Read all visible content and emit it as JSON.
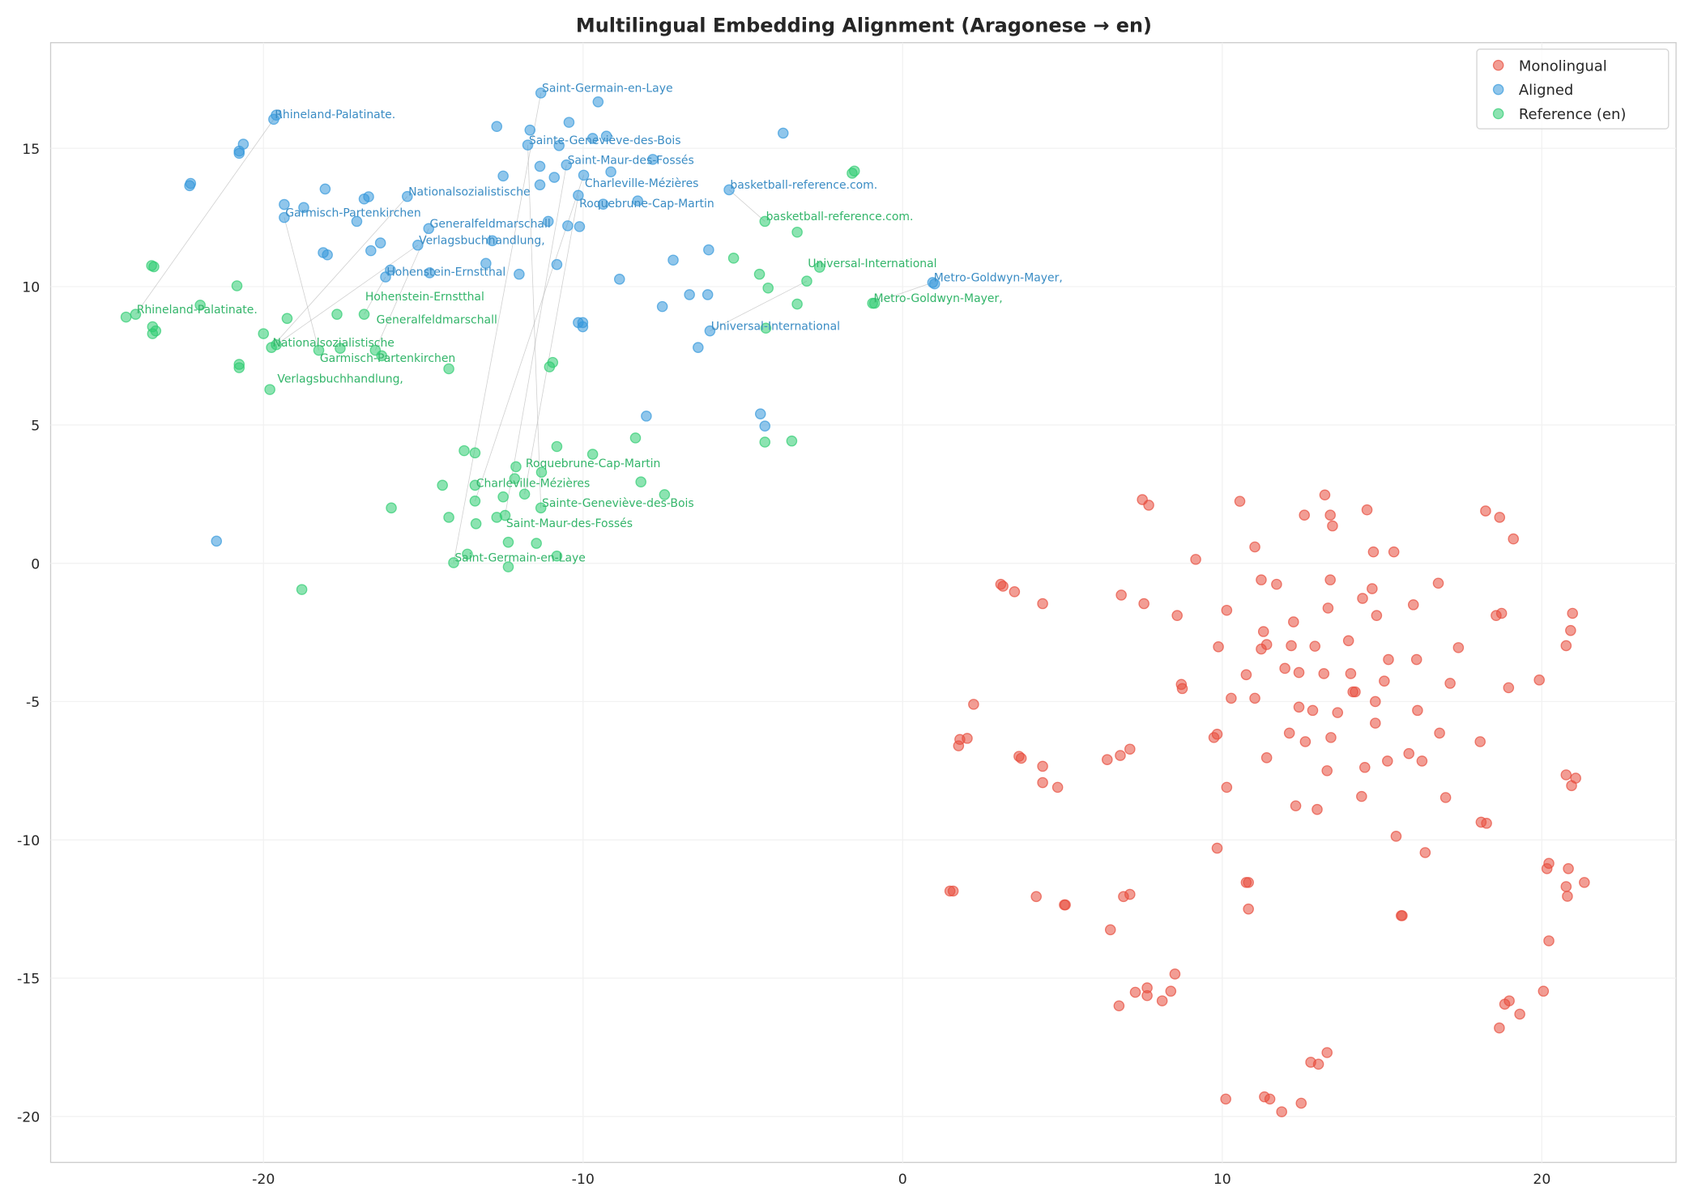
{
  "chart_data": {
    "type": "scatter",
    "title": "Multilingual Embedding Alignment (Aragonese → en)",
    "xlabel": "",
    "ylabel": "",
    "xlim": [
      -26.66,
      24.2
    ],
    "ylim": [
      -21.66,
      18.82
    ],
    "xticks": [
      -20,
      -10,
      0,
      10,
      20
    ],
    "xtick_labels": [
      "-20",
      "-10",
      "0",
      "10",
      "20"
    ],
    "yticks": [
      15,
      10,
      5,
      0,
      -5,
      -10,
      -15,
      -20
    ],
    "ytick_labels": [
      "15",
      "10",
      "5",
      "0",
      "-5",
      "-10",
      "-15",
      "-20"
    ],
    "grid": true,
    "legend_position": "top-right",
    "colors": {
      "Monolingual": "#e74c3c",
      "Aligned": "#3498db",
      "Reference (en)": "#2ecc71",
      "aligned_label": "#3a8cc4",
      "reference_label": "#33b56a"
    },
    "series": [
      {
        "name": "Monolingual",
        "points": [
          [
            13.21,
            2.47
          ],
          [
            7.5,
            2.3
          ],
          [
            7.7,
            2.1
          ],
          [
            10.55,
            2.24
          ],
          [
            14.53,
            1.93
          ],
          [
            12.57,
            1.74
          ],
          [
            13.38,
            1.74
          ],
          [
            13.45,
            1.35
          ],
          [
            18.24,
            1.89
          ],
          [
            18.68,
            1.66
          ],
          [
            19.11,
            0.88
          ],
          [
            15.37,
            0.41
          ],
          [
            14.73,
            0.41
          ],
          [
            9.17,
            0.14
          ],
          [
            11.02,
            0.59
          ],
          [
            3.07,
            -0.76
          ],
          [
            3.14,
            -0.83
          ],
          [
            3.5,
            -1.03
          ],
          [
            4.38,
            -1.46
          ],
          [
            6.84,
            -1.15
          ],
          [
            7.55,
            -1.46
          ],
          [
            11.22,
            -0.6
          ],
          [
            11.7,
            -0.76
          ],
          [
            13.38,
            -0.6
          ],
          [
            14.69,
            -0.92
          ],
          [
            14.39,
            -1.27
          ],
          [
            13.31,
            -1.62
          ],
          [
            15.98,
            -1.5
          ],
          [
            16.76,
            -0.72
          ],
          [
            10.14,
            -1.7
          ],
          [
            8.59,
            -1.89
          ],
          [
            14.83,
            -1.89
          ],
          [
            18.57,
            -1.89
          ],
          [
            18.74,
            -1.81
          ],
          [
            20.96,
            -1.81
          ],
          [
            11.29,
            -2.47
          ],
          [
            12.23,
            -2.12
          ],
          [
            9.88,
            -3.02
          ],
          [
            11.22,
            -3.1
          ],
          [
            11.39,
            -2.94
          ],
          [
            12.16,
            -2.98
          ],
          [
            12.9,
            -3.0
          ],
          [
            13.95,
            -2.8
          ],
          [
            15.2,
            -3.48
          ],
          [
            16.08,
            -3.48
          ],
          [
            17.39,
            -3.05
          ],
          [
            20.9,
            -2.43
          ],
          [
            20.76,
            -2.98
          ],
          [
            10.75,
            -4.03
          ],
          [
            11.96,
            -3.8
          ],
          [
            12.4,
            -3.95
          ],
          [
            13.18,
            -3.99
          ],
          [
            14.02,
            -3.99
          ],
          [
            15.07,
            -4.26
          ],
          [
            17.13,
            -4.34
          ],
          [
            19.92,
            -4.22
          ],
          [
            18.96,
            -4.5
          ],
          [
            8.72,
            -4.38
          ],
          [
            8.75,
            -4.53
          ],
          [
            10.28,
            -4.88
          ],
          [
            11.02,
            -4.88
          ],
          [
            14.09,
            -4.65
          ],
          [
            14.16,
            -4.65
          ],
          [
            12.4,
            -5.2
          ],
          [
            12.83,
            -5.32
          ],
          [
            13.61,
            -5.4
          ],
          [
            14.79,
            -5.0
          ],
          [
            16.11,
            -5.32
          ],
          [
            14.79,
            -5.78
          ],
          [
            2.22,
            -5.1
          ],
          [
            12.6,
            -6.45
          ],
          [
            12.1,
            -6.14
          ],
          [
            13.4,
            -6.3
          ],
          [
            9.74,
            -6.3
          ],
          [
            9.84,
            -6.18
          ],
          [
            16.8,
            -6.14
          ],
          [
            18.07,
            -6.45
          ],
          [
            15.84,
            -6.88
          ],
          [
            16.25,
            -7.15
          ],
          [
            15.17,
            -7.15
          ],
          [
            11.39,
            -7.03
          ],
          [
            14.46,
            -7.38
          ],
          [
            13.28,
            -7.5
          ],
          [
            7.11,
            -6.72
          ],
          [
            6.81,
            -6.95
          ],
          [
            6.4,
            -7.1
          ],
          [
            1.79,
            -6.37
          ],
          [
            2.02,
            -6.33
          ],
          [
            1.75,
            -6.6
          ],
          [
            3.64,
            -6.98
          ],
          [
            3.71,
            -7.05
          ],
          [
            4.38,
            -7.34
          ],
          [
            4.38,
            -7.93
          ],
          [
            4.85,
            -8.1
          ],
          [
            10.14,
            -8.1
          ],
          [
            16.99,
            -8.47
          ],
          [
            14.36,
            -8.43
          ],
          [
            20.76,
            -7.65
          ],
          [
            21.06,
            -7.77
          ],
          [
            20.93,
            -8.04
          ],
          [
            12.3,
            -8.77
          ],
          [
            12.97,
            -8.9
          ],
          [
            18.1,
            -9.36
          ],
          [
            18.27,
            -9.4
          ],
          [
            15.44,
            -9.87
          ],
          [
            9.84,
            -10.3
          ],
          [
            16.35,
            -10.46
          ],
          [
            20.22,
            -10.85
          ],
          [
            20.16,
            -11.04
          ],
          [
            20.83,
            -11.04
          ],
          [
            21.33,
            -11.54
          ],
          [
            20.76,
            -11.69
          ],
          [
            20.8,
            -12.04
          ],
          [
            10.75,
            -11.54
          ],
          [
            10.82,
            -11.54
          ],
          [
            10.82,
            -12.5
          ],
          [
            1.48,
            -11.85
          ],
          [
            1.58,
            -11.85
          ],
          [
            4.18,
            -12.05
          ],
          [
            5.06,
            -12.35
          ],
          [
            5.09,
            -12.35
          ],
          [
            7.11,
            -11.97
          ],
          [
            6.91,
            -12.05
          ],
          [
            15.6,
            -12.74
          ],
          [
            15.63,
            -12.74
          ],
          [
            6.5,
            -13.25
          ],
          [
            20.22,
            -13.65
          ],
          [
            8.52,
            -14.85
          ],
          [
            8.39,
            -15.47
          ],
          [
            7.65,
            -15.35
          ],
          [
            7.28,
            -15.51
          ],
          [
            7.65,
            -15.63
          ],
          [
            8.12,
            -15.82
          ],
          [
            6.77,
            -16.0
          ],
          [
            20.05,
            -15.47
          ],
          [
            19.31,
            -16.3
          ],
          [
            18.84,
            -15.94
          ],
          [
            18.98,
            -15.82
          ],
          [
            18.67,
            -16.8
          ],
          [
            13.28,
            -17.69
          ],
          [
            12.77,
            -18.04
          ],
          [
            13.01,
            -18.11
          ],
          [
            10.11,
            -19.37
          ],
          [
            11.32,
            -19.29
          ],
          [
            11.49,
            -19.37
          ],
          [
            12.47,
            -19.52
          ],
          [
            11.86,
            -19.83
          ]
        ]
      },
      {
        "name": "Aligned",
        "points": [
          [
            -22.31,
            13.65
          ],
          [
            -22.28,
            13.73
          ],
          [
            -20.76,
            14.9
          ],
          [
            -20.63,
            15.15
          ],
          [
            -20.76,
            14.82
          ],
          [
            -19.6,
            16.2
          ],
          [
            -21.47,
            0.8
          ],
          [
            -19.35,
            12.97
          ],
          [
            -18.74,
            12.86
          ],
          [
            -18.07,
            13.53
          ],
          [
            -18.13,
            11.23
          ],
          [
            -18.0,
            11.15
          ],
          [
            -17.08,
            12.36
          ],
          [
            -16.85,
            13.17
          ],
          [
            -16.71,
            13.25
          ],
          [
            -16.64,
            11.3
          ],
          [
            -16.34,
            11.58
          ],
          [
            -16.03,
            10.6
          ],
          [
            -12.7,
            15.79
          ],
          [
            -12.5,
            14.0
          ],
          [
            -11.66,
            15.66
          ],
          [
            -11.35,
            14.35
          ],
          [
            -11.35,
            13.68
          ],
          [
            -10.9,
            13.95
          ],
          [
            -10.75,
            15.1
          ],
          [
            -10.44,
            15.94
          ],
          [
            -9.7,
            15.36
          ],
          [
            -9.53,
            16.68
          ],
          [
            -9.27,
            15.44
          ],
          [
            -9.13,
            14.15
          ],
          [
            -9.37,
            12.98
          ],
          [
            -10.11,
            12.17
          ],
          [
            -10.48,
            12.2
          ],
          [
            -11.09,
            12.36
          ],
          [
            -10.82,
            10.8
          ],
          [
            -12.0,
            10.45
          ],
          [
            -13.04,
            10.84
          ],
          [
            -12.84,
            11.66
          ],
          [
            -14.8,
            10.5
          ],
          [
            -8.86,
            10.27
          ],
          [
            -8.29,
            13.1
          ],
          [
            -7.82,
            14.6
          ],
          [
            -7.18,
            10.96
          ],
          [
            -6.67,
            9.71
          ],
          [
            -6.1,
            9.71
          ],
          [
            -6.07,
            11.33
          ],
          [
            -7.52,
            9.28
          ],
          [
            -10.15,
            8.7
          ],
          [
            -10.01,
            8.7
          ],
          [
            -10.01,
            8.55
          ],
          [
            -6.4,
            7.8
          ],
          [
            -8.02,
            5.32
          ],
          [
            -4.45,
            5.4
          ],
          [
            -4.31,
            4.96
          ],
          [
            -3.74,
            15.55
          ],
          [
            1.0,
            10.1
          ]
        ]
      },
      {
        "name": "Reference (en)",
        "points": [
          [
            -23.5,
            10.76
          ],
          [
            -23.43,
            10.72
          ],
          [
            -24.3,
            8.9
          ],
          [
            -23.47,
            8.55
          ],
          [
            -23.37,
            8.4
          ],
          [
            -23.47,
            8.3
          ],
          [
            -21.98,
            9.33
          ],
          [
            -20.83,
            10.03
          ],
          [
            -20.0,
            8.3
          ],
          [
            -19.26,
            8.85
          ],
          [
            -20.76,
            7.19
          ],
          [
            -20.76,
            7.07
          ],
          [
            -19.8,
            6.28
          ],
          [
            -18.8,
            -0.95
          ],
          [
            -17.7,
            9.0
          ],
          [
            -17.6,
            7.77
          ],
          [
            -16.3,
            7.5
          ],
          [
            -14.2,
            7.03
          ],
          [
            -10.95,
            7.26
          ],
          [
            -11.05,
            7.1
          ],
          [
            -16.0,
            2.0
          ],
          [
            -14.4,
            2.82
          ],
          [
            -14.2,
            1.66
          ],
          [
            -13.72,
            4.07
          ],
          [
            -13.38,
            3.99
          ],
          [
            -13.38,
            2.82
          ],
          [
            -13.35,
            1.43
          ],
          [
            -13.62,
            0.33
          ],
          [
            -12.7,
            1.66
          ],
          [
            -12.5,
            2.4
          ],
          [
            -12.34,
            0.76
          ],
          [
            -12.34,
            -0.13
          ],
          [
            -12.14,
            3.06
          ],
          [
            -12.1,
            3.49
          ],
          [
            -11.46,
            0.72
          ],
          [
            -11.3,
            3.29
          ],
          [
            -10.82,
            4.22
          ],
          [
            -10.82,
            0.26
          ],
          [
            -9.7,
            3.94
          ],
          [
            -8.36,
            4.53
          ],
          [
            -8.19,
            2.94
          ],
          [
            -7.45,
            2.48
          ],
          [
            -5.29,
            11.03
          ],
          [
            -4.48,
            10.45
          ],
          [
            -4.21,
            9.95
          ],
          [
            -4.28,
            8.5
          ],
          [
            -3.3,
            11.97
          ],
          [
            -3.3,
            9.37
          ],
          [
            -2.6,
            10.7
          ],
          [
            -4.31,
            4.38
          ],
          [
            -3.47,
            4.42
          ],
          [
            -1.58,
            14.1
          ],
          [
            -1.51,
            14.18
          ],
          [
            -0.88,
            9.4
          ]
        ]
      }
    ],
    "labeled_pairs": [
      {
        "label": "Rhineland-Palatinate.",
        "aligned": [
          -19.68,
          16.05
        ],
        "reference": [
          -24.0,
          9.0
        ]
      },
      {
        "label": "Saint-Germain-en-Laye",
        "aligned": [
          -11.32,
          17.0
        ],
        "reference": [
          -14.05,
          0.02
        ]
      },
      {
        "label": "Sainte-Geneviève-des-Bois",
        "aligned": [
          -11.73,
          15.12
        ],
        "reference": [
          -11.32,
          2.0
        ]
      },
      {
        "label": "Saint-Maur-des-Fossés",
        "aligned": [
          -10.52,
          14.4
        ],
        "reference": [
          -12.44,
          1.73
        ]
      },
      {
        "label": "Charleville-Mézières",
        "aligned": [
          -9.98,
          14.03
        ],
        "reference": [
          -13.38,
          2.25
        ]
      },
      {
        "label": "Nationalsozialistische",
        "aligned": [
          -15.5,
          13.26
        ],
        "reference": [
          -19.75,
          7.8
        ]
      },
      {
        "label": "Roquebrune-Cap-Martin",
        "aligned": [
          -10.15,
          13.3
        ],
        "reference": [
          -11.83,
          2.5
        ]
      },
      {
        "label": "basketball-reference.com.",
        "aligned": [
          -5.43,
          13.5
        ],
        "reference": [
          -4.31,
          12.36
        ]
      },
      {
        "label": "Garmisch-Partenkirchen",
        "aligned": [
          -19.35,
          12.5
        ],
        "reference": [
          -18.27,
          7.7
        ]
      },
      {
        "label": "Generalfeldmarschall",
        "aligned": [
          -14.83,
          12.1
        ],
        "reference": [
          -16.5,
          7.7
        ]
      },
      {
        "label": "Verlagsbuchhandlung,",
        "aligned": [
          -15.17,
          11.5
        ],
        "reference": [
          -19.6,
          7.9
        ]
      },
      {
        "label": "Hohenstein-Ernstthal",
        "aligned": [
          -16.18,
          10.35
        ],
        "reference": [
          -16.85,
          9.0
        ]
      },
      {
        "label": "Universal-International",
        "aligned": [
          -6.03,
          8.4
        ],
        "reference": [
          -3.0,
          10.2
        ]
      },
      {
        "label": "Metro-Goldwyn-Mayer,",
        "aligned": [
          0.94,
          10.15
        ],
        "reference": [
          -0.94,
          9.4
        ]
      }
    ]
  }
}
